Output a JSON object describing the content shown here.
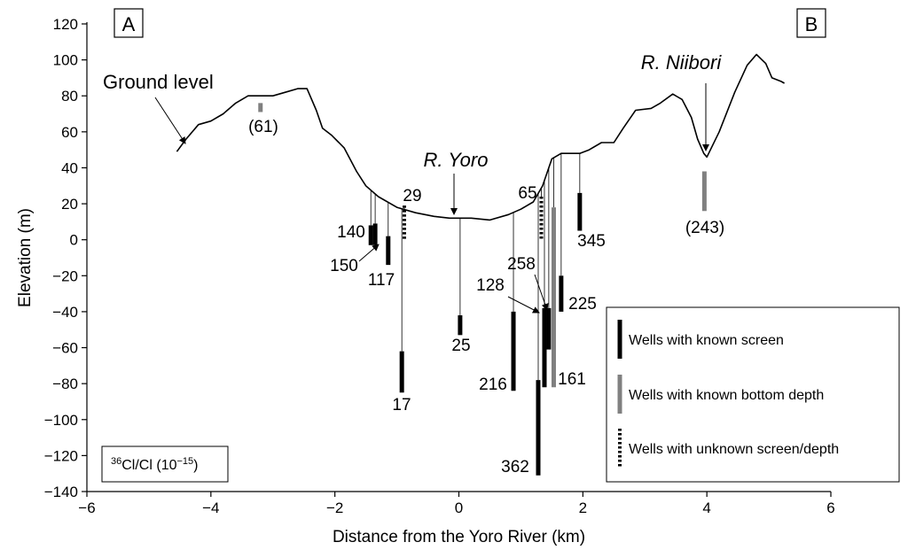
{
  "chart_data": {
    "type": "cross-section",
    "xlabel": "Distance from the Yoro River (km)",
    "ylabel": "Elevation (m)",
    "xlim": [
      -6,
      6
    ],
    "ylim": [
      -140,
      120
    ],
    "xticks": [
      -6,
      -4,
      -2,
      0,
      2,
      4,
      6
    ],
    "yticks": [
      -140,
      -120,
      -100,
      -80,
      -60,
      -40,
      -20,
      0,
      20,
      40,
      60,
      80,
      100,
      120
    ],
    "xtick_labels": [
      "−6",
      "−4",
      "−2",
      "0",
      "2",
      "4",
      "6"
    ],
    "ytick_labels": [
      "−140",
      "−120",
      "−100",
      "−80",
      "−60",
      "−40",
      "−20",
      "0",
      "20",
      "40",
      "60",
      "80",
      "100",
      "120"
    ],
    "grid": false,
    "section_labels": {
      "left": "A",
      "right": "B"
    },
    "ground_profile": {
      "name": "Ground level",
      "x": [
        -4.55,
        -4.4,
        -4.2,
        -4.0,
        -3.8,
        -3.6,
        -3.4,
        -3.2,
        -3.0,
        -2.8,
        -2.6,
        -2.45,
        -2.3,
        -2.2,
        -2.05,
        -1.85,
        -1.65,
        -1.5,
        -1.3,
        -1.0,
        -0.7,
        -0.4,
        -0.15,
        0.2,
        0.5,
        0.8,
        1.0,
        1.2,
        1.35,
        1.5,
        1.65,
        1.75,
        1.95,
        2.1,
        2.3,
        2.5,
        2.65,
        2.85,
        3.1,
        3.25,
        3.45,
        3.6,
        3.75,
        3.85,
        3.95,
        4.0,
        4.2,
        4.45,
        4.65,
        4.8,
        4.95,
        5.05,
        5.2,
        5.25
      ],
      "y": [
        49,
        56,
        64,
        66,
        70,
        76,
        80,
        80,
        80,
        82,
        84,
        84,
        72,
        62,
        58,
        51,
        38,
        30,
        24,
        18,
        15,
        13,
        12,
        12,
        11,
        14,
        17,
        21,
        30,
        45,
        48,
        48,
        48,
        50,
        54,
        54,
        62,
        72,
        73,
        76,
        81,
        78,
        68,
        56,
        48,
        46,
        60,
        82,
        97,
        103,
        98,
        90,
        88,
        87
      ]
    },
    "rivers": [
      {
        "name": "R. Yoro",
        "x": 0,
        "y": 12
      },
      {
        "name": "R. Niibori",
        "x": 4.0,
        "y": 45
      }
    ],
    "wells": [
      {
        "value": "(61)",
        "x": -3.2,
        "top": 76,
        "bottom": 71,
        "type": "bottom_depth"
      },
      {
        "value": "140",
        "x": -1.42,
        "top": 8,
        "bottom": -3,
        "type": "screen"
      },
      {
        "value": "150",
        "x": -1.35,
        "top": 9,
        "bottom": -3,
        "type": "screen"
      },
      {
        "value": "117",
        "x": -1.14,
        "top": 2,
        "bottom": -14,
        "type": "screen"
      },
      {
        "value": "29",
        "x": -0.88,
        "top": 19,
        "bottom": 0,
        "type": "unknown"
      },
      {
        "value": "17",
        "x": -0.92,
        "top": -62,
        "bottom": -85,
        "type": "screen"
      },
      {
        "value": "25",
        "x": 0.02,
        "top": -42,
        "bottom": -53,
        "type": "screen"
      },
      {
        "value": "216",
        "x": 0.88,
        "top": -40,
        "bottom": -84,
        "type": "screen"
      },
      {
        "value": "362",
        "x": 1.28,
        "top": -78,
        "bottom": -131,
        "type": "screen"
      },
      {
        "value": "65",
        "x": 1.33,
        "top": 24,
        "bottom": 0,
        "type": "unknown"
      },
      {
        "value": "128",
        "x": 1.38,
        "top": -38,
        "bottom": -82,
        "type": "screen"
      },
      {
        "value": "258",
        "x": 1.45,
        "top": -38,
        "bottom": -61,
        "type": "screen"
      },
      {
        "value": "161",
        "x": 1.53,
        "top": 18,
        "bottom": -82,
        "type": "bottom_depth"
      },
      {
        "value": "225",
        "x": 1.65,
        "top": -20,
        "bottom": -40,
        "type": "screen"
      },
      {
        "value": "345",
        "x": 1.95,
        "top": 26,
        "bottom": 5,
        "type": "screen"
      },
      {
        "value": "(243)",
        "x": 3.96,
        "top": 38,
        "bottom": 16,
        "type": "bottom_depth"
      }
    ],
    "legend": {
      "placement": "bottom-right",
      "items": [
        {
          "label": "Wells with known screen",
          "style": "screen"
        },
        {
          "label": "Wells with known bottom depth",
          "style": "bottom_depth"
        },
        {
          "label": "Wells with unknown screen/depth",
          "style": "unknown"
        }
      ]
    },
    "unit_box": {
      "sup": "36",
      "main": "Cl/Cl (10",
      "exp": "−15",
      "close": ")"
    },
    "colors": {
      "screen": "#000000",
      "bottom_depth": "#808080",
      "profile": "#000000"
    }
  }
}
